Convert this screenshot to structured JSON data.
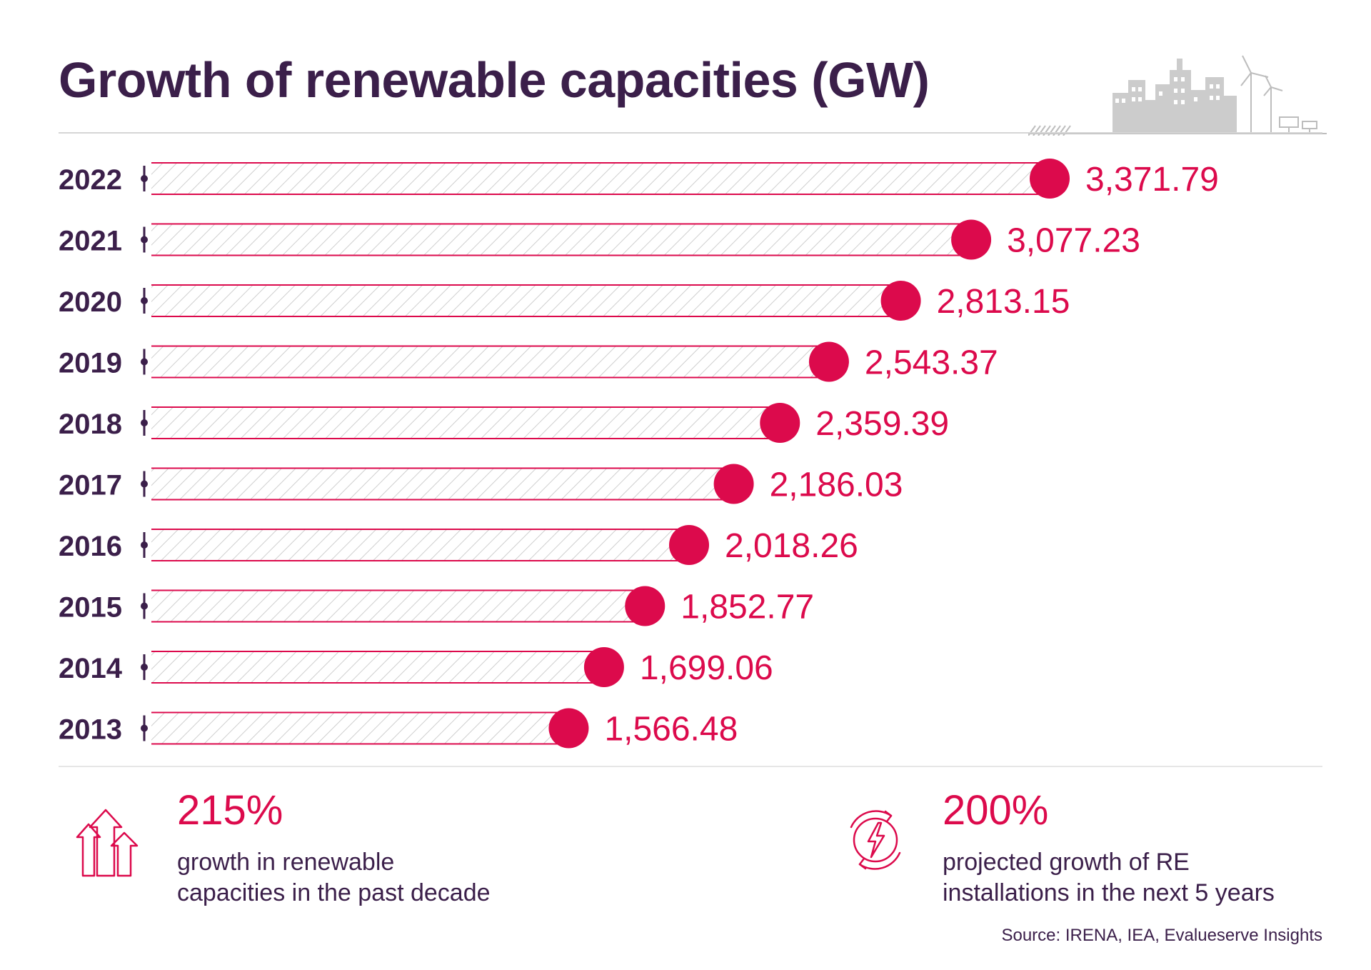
{
  "chart_data": {
    "type": "bar",
    "orientation": "horizontal",
    "title": "Growth of renewable capacities (GW)",
    "categories": [
      "2022",
      "2021",
      "2020",
      "2019",
      "2018",
      "2017",
      "2016",
      "2015",
      "2014",
      "2013"
    ],
    "values": [
      3371.79,
      3077.23,
      2813.15,
      2543.37,
      2359.39,
      2186.03,
      2018.26,
      1852.77,
      1699.06,
      1566.48
    ],
    "value_labels": [
      "3,371.79",
      "3,077.23",
      "2,813.15",
      "2,543.37",
      "2,359.39",
      "2,186.03",
      "2,018.26",
      "1,852.77",
      "1,699.06",
      "1,566.48"
    ],
    "xlabel": "",
    "ylabel": "",
    "xlim": [
      0,
      3371.79
    ],
    "grid": false
  },
  "stats": [
    {
      "value": "215%",
      "line1": "growth in renewable",
      "line2": "capacities in the past decade",
      "icon": "growth-arrows-icon"
    },
    {
      "value": "200%",
      "line1": "projected growth of RE",
      "line2": "installations in the next 5 years",
      "icon": "energy-cycle-icon"
    }
  ],
  "source": "Source: IRENA, IEA, Evalueserve Insights",
  "colors": {
    "accent": "#dc0a4c",
    "text_dark": "#3b1f4a",
    "hatch": "#c8c8c8",
    "illustration": "#c9c9c9"
  },
  "illustration": "city-skyline-wind-solar-icon"
}
